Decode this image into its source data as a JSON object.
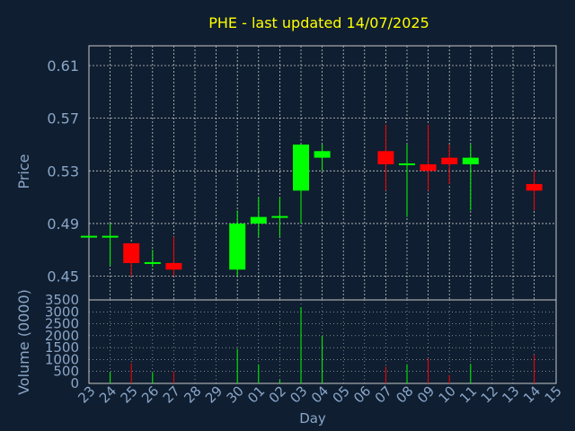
{
  "chart_data": {
    "type": "candlestick",
    "title": "PHE - last updated 14/07/2025",
    "colors": {
      "background": "#0f1e30",
      "title": "#ffff00",
      "axis_text": "#8aa6c8",
      "frame": "#c8c8c8",
      "grid": "#c8c8c8",
      "up": "#00ff00",
      "down": "#ff0000"
    },
    "price_panel": {
      "ylabel": "Price",
      "ylim": [
        0.432,
        0.625
      ],
      "yticks": [
        "0.61",
        "0.57",
        "0.53",
        "0.49",
        "0.45"
      ],
      "grid": true
    },
    "volume_panel": {
      "ylabel": "Volume (0000)",
      "ylim": [
        0,
        3500
      ],
      "yticks": [
        "3500",
        "3000",
        "2500",
        "2000",
        "1500",
        "1000",
        "500",
        "0"
      ],
      "grid": true
    },
    "xlabel": "Day",
    "x_ticks": [
      "23",
      "24",
      "25",
      "26",
      "27",
      "28",
      "29",
      "30",
      "01",
      "02",
      "03",
      "04",
      "05",
      "06",
      "07",
      "08",
      "09",
      "10",
      "11",
      "12",
      "13",
      "14",
      "15"
    ],
    "candles": [
      {
        "day": "23",
        "open": 0.48,
        "high": 0.48,
        "low": 0.48,
        "close": 0.48,
        "volume": 0
      },
      {
        "day": "24",
        "open": 0.48,
        "high": 0.49,
        "low": 0.458,
        "close": 0.48,
        "volume": 480
      },
      {
        "day": "25",
        "open": 0.475,
        "high": 0.475,
        "low": 0.45,
        "close": 0.46,
        "volume": 850
      },
      {
        "day": "26",
        "open": 0.46,
        "high": 0.47,
        "low": 0.457,
        "close": 0.46,
        "volume": 450
      },
      {
        "day": "27",
        "open": 0.46,
        "high": 0.48,
        "low": 0.45,
        "close": 0.455,
        "volume": 500
      },
      {
        "day": "30",
        "open": 0.455,
        "high": 0.5,
        "low": 0.45,
        "close": 0.49,
        "volume": 1450
      },
      {
        "day": "01",
        "open": 0.49,
        "high": 0.51,
        "low": 0.48,
        "close": 0.495,
        "volume": 800
      },
      {
        "day": "02",
        "open": 0.495,
        "high": 0.51,
        "low": 0.48,
        "close": 0.495,
        "volume": 150
      },
      {
        "day": "03",
        "open": 0.515,
        "high": 0.55,
        "low": 0.49,
        "close": 0.55,
        "volume": 3200
      },
      {
        "day": "04",
        "open": 0.54,
        "high": 0.55,
        "low": 0.53,
        "close": 0.545,
        "volume": 2000
      },
      {
        "day": "07",
        "open": 0.545,
        "high": 0.565,
        "low": 0.515,
        "close": 0.535,
        "volume": 700
      },
      {
        "day": "08",
        "open": 0.535,
        "high": 0.55,
        "low": 0.495,
        "close": 0.535,
        "volume": 800
      },
      {
        "day": "09",
        "open": 0.535,
        "high": 0.565,
        "low": 0.515,
        "close": 0.53,
        "volume": 1050
      },
      {
        "day": "10",
        "open": 0.54,
        "high": 0.55,
        "low": 0.52,
        "close": 0.535,
        "volume": 350
      },
      {
        "day": "11",
        "open": 0.535,
        "high": 0.55,
        "low": 0.5,
        "close": 0.54,
        "volume": 820
      },
      {
        "day": "14",
        "open": 0.52,
        "high": 0.53,
        "low": 0.5,
        "close": 0.515,
        "volume": 1200
      }
    ]
  }
}
